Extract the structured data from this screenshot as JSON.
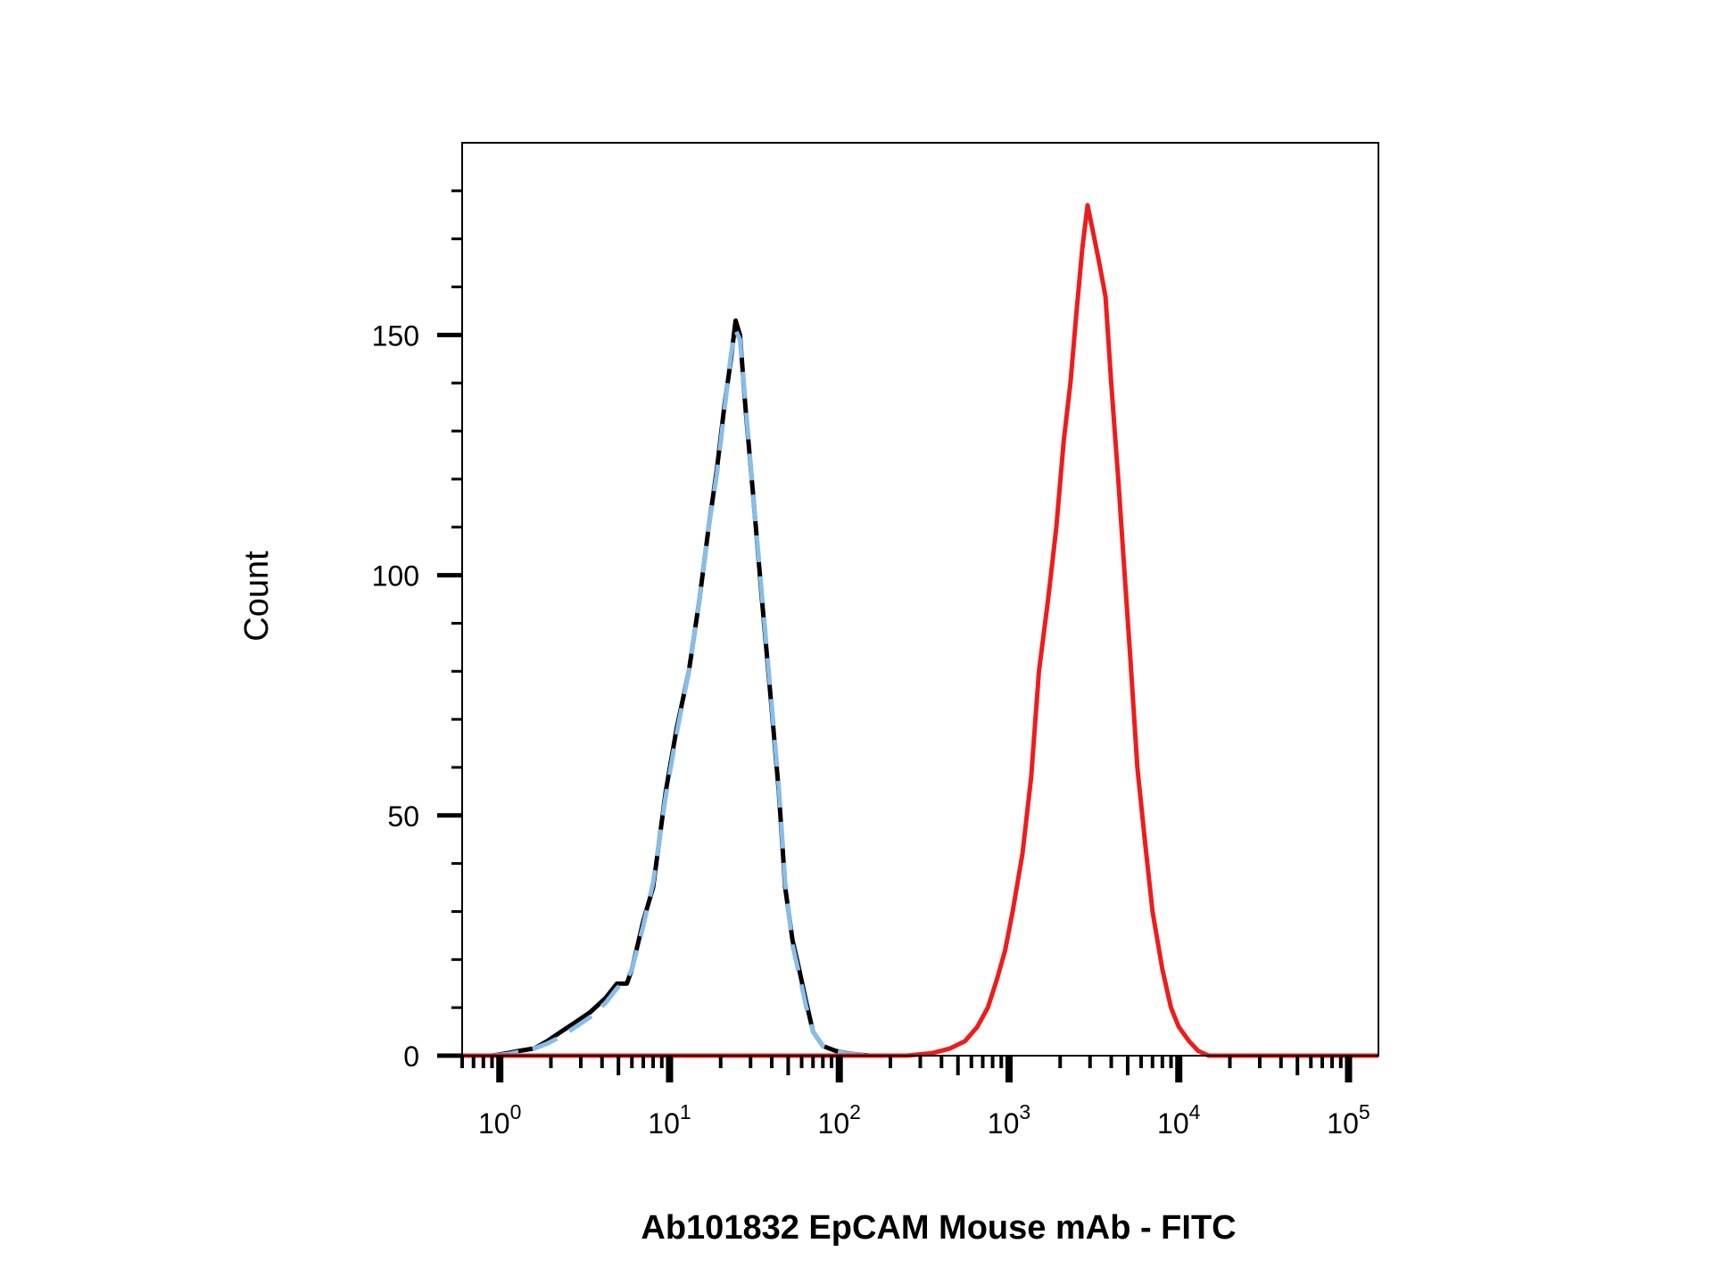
{
  "chart_data": {
    "type": "line",
    "title": "",
    "xlabel": "Ab101832 EpCAM Mouse mAb - FITC",
    "ylabel": "Count",
    "x_scale": "log",
    "xlim": [
      0.6,
      150000
    ],
    "ylim": [
      0,
      190
    ],
    "grid": false,
    "legend": "none",
    "y_ticks": [
      {
        "value": 0,
        "label": "0"
      },
      {
        "value": 50,
        "label": "50"
      },
      {
        "value": 100,
        "label": "100"
      },
      {
        "value": 150,
        "label": "150"
      }
    ],
    "x_ticks": [
      {
        "value": 1,
        "base": "10",
        "exp": "0"
      },
      {
        "value": 10,
        "base": "10",
        "exp": "1"
      },
      {
        "value": 100,
        "base": "10",
        "exp": "2"
      },
      {
        "value": 1000,
        "base": "10",
        "exp": "3"
      },
      {
        "value": 10000,
        "base": "10",
        "exp": "4"
      },
      {
        "value": 100000,
        "base": "10",
        "exp": "5"
      }
    ],
    "series": [
      {
        "color": "#000000",
        "style": "solid",
        "points": [
          [
            0.9,
            0
          ],
          [
            1.1,
            0.5
          ],
          [
            1.3,
            1
          ],
          [
            1.6,
            1.5
          ],
          [
            1.9,
            3
          ],
          [
            2.3,
            5
          ],
          [
            2.8,
            7
          ],
          [
            3.4,
            9
          ],
          [
            4.2,
            12
          ],
          [
            4.9,
            15
          ],
          [
            5.6,
            15
          ],
          [
            6.0,
            18
          ],
          [
            7.0,
            28
          ],
          [
            8.0,
            35
          ],
          [
            9.5,
            55
          ],
          [
            11,
            68
          ],
          [
            13,
            80
          ],
          [
            15,
            95
          ],
          [
            17,
            110
          ],
          [
            19,
            122
          ],
          [
            21,
            135
          ],
          [
            23,
            145
          ],
          [
            24.5,
            153
          ],
          [
            26,
            150
          ],
          [
            28,
            135
          ],
          [
            31,
            117
          ],
          [
            35,
            95
          ],
          [
            40,
            72
          ],
          [
            44,
            55
          ],
          [
            48,
            35
          ],
          [
            53,
            24
          ],
          [
            58,
            18
          ],
          [
            64,
            11
          ],
          [
            70,
            5
          ],
          [
            80,
            2
          ],
          [
            95,
            1
          ],
          [
            110,
            0.5
          ],
          [
            150,
            0
          ],
          [
            200,
            0
          ]
        ]
      },
      {
        "color": "#88bdea",
        "style": "dashed",
        "points": [
          [
            0.9,
            0
          ],
          [
            1.1,
            0.3
          ],
          [
            1.3,
            0.8
          ],
          [
            1.6,
            1.5
          ],
          [
            1.9,
            2.5
          ],
          [
            2.3,
            4
          ],
          [
            2.8,
            6
          ],
          [
            3.4,
            8
          ],
          [
            4.2,
            11
          ],
          [
            4.9,
            14
          ],
          [
            5.6,
            16
          ],
          [
            6.0,
            18
          ],
          [
            7.0,
            27
          ],
          [
            8.0,
            36
          ],
          [
            9.5,
            54
          ],
          [
            11,
            67
          ],
          [
            13,
            80
          ],
          [
            15,
            95
          ],
          [
            17,
            110
          ],
          [
            19,
            121
          ],
          [
            21,
            134
          ],
          [
            23,
            146
          ],
          [
            24.5,
            151
          ],
          [
            26,
            149
          ],
          [
            28,
            136
          ],
          [
            31,
            117
          ],
          [
            35,
            96
          ],
          [
            40,
            73
          ],
          [
            44,
            56
          ],
          [
            48,
            36
          ],
          [
            53,
            23
          ],
          [
            58,
            17
          ],
          [
            64,
            10
          ],
          [
            70,
            5
          ],
          [
            80,
            2
          ],
          [
            95,
            1
          ],
          [
            110,
            0.4
          ],
          [
            150,
            0
          ],
          [
            230,
            0
          ]
        ]
      },
      {
        "color": "#ee1c1c",
        "style": "solid",
        "points": [
          [
            0.6,
            0
          ],
          [
            250,
            0
          ],
          [
            350,
            0.5
          ],
          [
            450,
            1.5
          ],
          [
            550,
            3
          ],
          [
            650,
            6
          ],
          [
            750,
            10
          ],
          [
            850,
            16
          ],
          [
            950,
            22
          ],
          [
            1050,
            30
          ],
          [
            1200,
            42
          ],
          [
            1350,
            58
          ],
          [
            1500,
            80
          ],
          [
            1700,
            95
          ],
          [
            1900,
            110
          ],
          [
            2100,
            128
          ],
          [
            2300,
            140
          ],
          [
            2500,
            155
          ],
          [
            2700,
            168
          ],
          [
            2900,
            177
          ],
          [
            3100,
            172
          ],
          [
            3400,
            165
          ],
          [
            3700,
            158
          ],
          [
            4000,
            140
          ],
          [
            4400,
            120
          ],
          [
            4800,
            100
          ],
          [
            5200,
            82
          ],
          [
            5700,
            60
          ],
          [
            6300,
            45
          ],
          [
            7000,
            30
          ],
          [
            8000,
            18
          ],
          [
            9000,
            10
          ],
          [
            10000,
            6
          ],
          [
            11500,
            3
          ],
          [
            13000,
            1
          ],
          [
            15000,
            0
          ],
          [
            150000,
            0
          ]
        ]
      }
    ]
  }
}
